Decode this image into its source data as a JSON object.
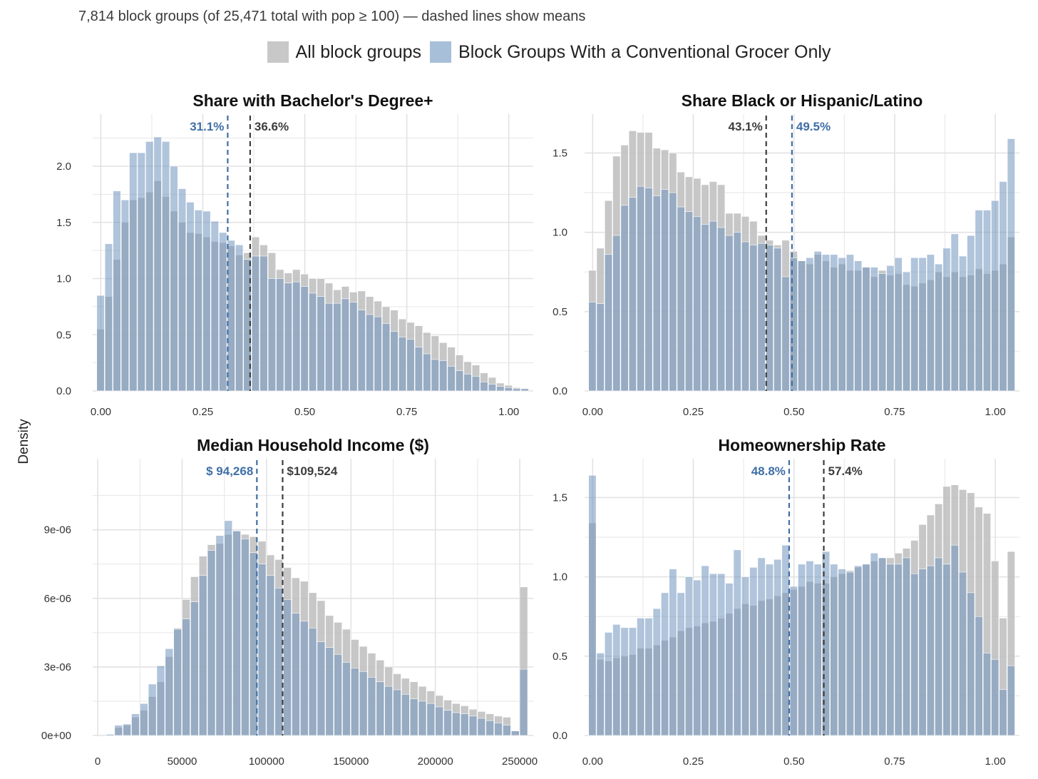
{
  "subtitle": "7,814 block groups (of 25,471 total with pop ≥ 100) — dashed lines show means",
  "legend": [
    {
      "label": "All block groups",
      "color": "#c0c0c0"
    },
    {
      "label": "Block Groups With a Conventional Grocer Only",
      "color": "#a3bbd6"
    }
  ],
  "y_axis_label": "Density",
  "colors": {
    "all": "#b9b9b9",
    "grocer": "#8aaad0",
    "overlap": "#8ea3bb",
    "grid": "#e6e6e6",
    "mean_all": "#3d3d3d",
    "mean_grocer": "#3f6fa6"
  },
  "chart_data": [
    {
      "type": "histogram",
      "title": "Share with Bachelor's Degree+",
      "xlim": [
        -0.02,
        1.06
      ],
      "ylim": [
        0,
        2.4
      ],
      "x_ticks": [
        0,
        0.25,
        0.5,
        0.75,
        1.0
      ],
      "x_tick_labels": [
        "0.00",
        "0.25",
        "0.50",
        "0.75",
        "1.00"
      ],
      "y_ticks": [
        0,
        0.5,
        1.0,
        1.5,
        2.0
      ],
      "y_tick_labels": [
        "0.0",
        "0.5",
        "1.0",
        "1.5",
        "2.0"
      ],
      "bin_start": -0.01,
      "bin_width": 0.02,
      "series": [
        {
          "name": "All block groups",
          "values": [
            0.55,
            0.84,
            1.17,
            1.5,
            1.7,
            1.72,
            1.77,
            1.87,
            1.73,
            1.6,
            1.5,
            1.41,
            1.4,
            1.37,
            1.33,
            1.32,
            1.29,
            1.21,
            1.23,
            1.37,
            1.3,
            1.23,
            1.08,
            1.05,
            1.08,
            1.04,
            1.0,
            1.0,
            0.96,
            0.9,
            0.93,
            0.88,
            0.89,
            0.84,
            0.8,
            0.75,
            0.72,
            0.64,
            0.61,
            0.58,
            0.52,
            0.49,
            0.43,
            0.39,
            0.32,
            0.26,
            0.23,
            0.16,
            0.12,
            0.07,
            0.05,
            0.03,
            0.02
          ]
        },
        {
          "name": "Block Groups With a Conventional Grocer Only",
          "values": [
            0.85,
            1.31,
            1.78,
            1.7,
            2.12,
            2.12,
            2.22,
            2.26,
            2.22,
            2.0,
            1.8,
            1.68,
            1.61,
            1.6,
            1.51,
            1.41,
            1.34,
            1.3,
            1.17,
            1.2,
            1.2,
            1.0,
            1.0,
            0.96,
            0.97,
            0.93,
            0.87,
            0.84,
            0.78,
            0.78,
            0.82,
            0.79,
            0.72,
            0.68,
            0.66,
            0.6,
            0.53,
            0.48,
            0.46,
            0.39,
            0.33,
            0.28,
            0.27,
            0.22,
            0.18,
            0.15,
            0.13,
            0.08,
            0.06,
            0.04,
            0.03,
            0.02,
            0.02
          ]
        }
      ],
      "means": [
        {
          "label": "31.1%",
          "value": 0.311,
          "series": "grocer"
        },
        {
          "label": "36.6%",
          "value": 0.366,
          "series": "all"
        }
      ]
    },
    {
      "type": "histogram",
      "title": "Share Black or Hispanic/Latino",
      "xlim": [
        -0.02,
        1.06
      ],
      "ylim": [
        0,
        1.7
      ],
      "x_ticks": [
        0,
        0.25,
        0.5,
        0.75,
        1.0
      ],
      "x_tick_labels": [
        "0.00",
        "0.25",
        "0.50",
        "0.75",
        "1.00"
      ],
      "y_ticks": [
        0,
        0.5,
        1.0,
        1.5
      ],
      "y_tick_labels": [
        "0.0",
        "0.5",
        "1.0",
        "1.5"
      ],
      "bin_start": -0.01,
      "bin_width": 0.02,
      "series": [
        {
          "name": "All block groups",
          "values": [
            0.76,
            0.9,
            1.2,
            1.48,
            1.55,
            1.64,
            1.63,
            1.63,
            1.53,
            1.52,
            1.5,
            1.38,
            1.35,
            1.34,
            1.3,
            1.32,
            1.3,
            1.12,
            1.12,
            1.1,
            1.07,
            0.98,
            0.95,
            0.92,
            0.95,
            0.88,
            0.82,
            0.8,
            0.86,
            0.82,
            0.78,
            0.8,
            0.76,
            0.76,
            0.78,
            0.72,
            0.76,
            0.73,
            0.74,
            0.67,
            0.66,
            0.68,
            0.7,
            0.75,
            0.72,
            0.75,
            0.72,
            0.73,
            0.77,
            0.74,
            0.76,
            0.8,
            0.97
          ]
        },
        {
          "name": "Block Groups With a Conventional Grocer Only",
          "values": [
            0.56,
            0.55,
            0.86,
            0.98,
            1.17,
            1.22,
            1.29,
            1.28,
            1.23,
            1.27,
            1.25,
            1.16,
            1.13,
            1.1,
            1.05,
            1.07,
            1.03,
            0.98,
            1.0,
            0.94,
            0.92,
            0.93,
            0.92,
            0.9,
            0.72,
            0.84,
            0.82,
            0.84,
            0.88,
            0.86,
            0.86,
            0.84,
            0.86,
            0.82,
            0.78,
            0.78,
            0.74,
            0.79,
            0.84,
            0.75,
            0.84,
            0.84,
            0.86,
            0.8,
            0.9,
            0.99,
            0.85,
            0.98,
            1.14,
            1.14,
            1.2,
            1.32,
            1.59
          ]
        }
      ],
      "means": [
        {
          "label": "43.1%",
          "value": 0.431,
          "series": "all"
        },
        {
          "label": "49.5%",
          "value": 0.495,
          "series": "grocer"
        }
      ]
    },
    {
      "type": "histogram",
      "title": "Median Household Income ($)",
      "xlim": [
        -3000,
        258000
      ],
      "ylim": [
        0,
        1.18e-05
      ],
      "x_ticks": [
        0,
        50000,
        100000,
        150000,
        200000,
        250000
      ],
      "x_tick_labels": [
        "0",
        "50000",
        "100000",
        "150000",
        "200000",
        "250000"
      ],
      "y_ticks": [
        0,
        3e-06,
        6e-06,
        9e-06
      ],
      "y_tick_labels": [
        "0e+00",
        "3e-06",
        "6e-06",
        "9e-06"
      ],
      "bin_start": 5000,
      "bin_width": 5000,
      "series": [
        {
          "name": "All block groups",
          "values": [
            0.05,
            0.35,
            0.45,
            0.8,
            1.1,
            1.7,
            2.35,
            3.45,
            4.7,
            5.95,
            6.95,
            7.85,
            8.35,
            8.4,
            8.8,
            8.95,
            8.8,
            8.7,
            8.5,
            7.9,
            7.7,
            7.35,
            6.9,
            6.75,
            6.25,
            5.9,
            5.25,
            4.95,
            4.65,
            4.2,
            3.9,
            3.6,
            3.3,
            3.0,
            2.7,
            2.5,
            2.35,
            2.15,
            1.95,
            1.75,
            1.55,
            1.4,
            1.3,
            1.15,
            1.05,
            0.95,
            0.85,
            0.8,
            0.2,
            6.5
          ]
        },
        {
          "name": "Block Groups With a Conventional Grocer Only",
          "values": [
            0.05,
            0.45,
            0.5,
            0.95,
            1.4,
            2.25,
            3.05,
            3.8,
            4.65,
            5.1,
            5.85,
            7.0,
            8.1,
            8.75,
            9.4,
            8.95,
            8.6,
            8.0,
            7.5,
            7.0,
            6.45,
            5.95,
            5.35,
            5.0,
            4.7,
            4.1,
            3.85,
            3.55,
            3.2,
            2.95,
            2.8,
            2.55,
            2.35,
            2.15,
            2.0,
            1.8,
            1.6,
            1.5,
            1.4,
            1.25,
            1.1,
            1.0,
            0.95,
            0.85,
            0.75,
            0.65,
            0.55,
            0.45,
            0.2,
            2.9
          ]
        }
      ],
      "value_scale": 1e-06,
      "means": [
        {
          "label": "$ 94,268",
          "value": 94268,
          "series": "grocer"
        },
        {
          "label": "$109,524",
          "value": 109524,
          "series": "all"
        }
      ]
    },
    {
      "type": "histogram",
      "title": "Homeownership Rate",
      "xlim": [
        -0.02,
        1.06
      ],
      "ylim": [
        0,
        1.7
      ],
      "x_ticks": [
        0,
        0.25,
        0.5,
        0.75,
        1.0
      ],
      "x_tick_labels": [
        "0.00",
        "0.25",
        "0.50",
        "0.75",
        "1.00"
      ],
      "y_ticks": [
        0,
        0.5,
        1.0,
        1.5
      ],
      "y_tick_labels": [
        "0.0",
        "0.5",
        "1.0",
        "1.5"
      ],
      "bin_start": -0.01,
      "bin_width": 0.02,
      "series": [
        {
          "name": "All block groups",
          "values": [
            1.34,
            0.48,
            0.47,
            0.49,
            0.5,
            0.51,
            0.55,
            0.55,
            0.57,
            0.6,
            0.62,
            0.66,
            0.68,
            0.69,
            0.71,
            0.72,
            0.74,
            0.77,
            0.8,
            0.83,
            0.82,
            0.85,
            0.86,
            0.88,
            0.9,
            0.92,
            0.94,
            0.97,
            0.96,
            0.96,
            1.0,
            1.02,
            1.04,
            1.06,
            1.08,
            1.1,
            1.12,
            1.12,
            1.15,
            1.18,
            1.23,
            1.33,
            1.39,
            1.46,
            1.57,
            1.58,
            1.55,
            1.53,
            1.44,
            1.4,
            1.1,
            0.74,
            1.16
          ]
        },
        {
          "name": "Block Groups With a Conventional Grocer Only",
          "values": [
            1.64,
            0.52,
            0.65,
            0.7,
            0.68,
            0.68,
            0.74,
            0.74,
            0.8,
            0.9,
            1.05,
            0.9,
            1.0,
            0.98,
            1.07,
            1.02,
            1.02,
            0.96,
            1.17,
            1.0,
            1.06,
            1.12,
            1.08,
            1.11,
            1.2,
            0.94,
            1.08,
            1.1,
            1.08,
            1.16,
            1.08,
            1.05,
            1.03,
            1.07,
            1.08,
            1.15,
            1.12,
            1.08,
            1.08,
            1.12,
            1.02,
            1.05,
            1.07,
            1.12,
            1.08,
            1.2,
            1.03,
            0.9,
            0.75,
            0.52,
            0.48,
            0.29,
            0.44
          ]
        }
      ],
      "means": [
        {
          "label": "48.8%",
          "value": 0.488,
          "series": "grocer"
        },
        {
          "label": "57.4%",
          "value": 0.574,
          "series": "all"
        }
      ]
    }
  ]
}
